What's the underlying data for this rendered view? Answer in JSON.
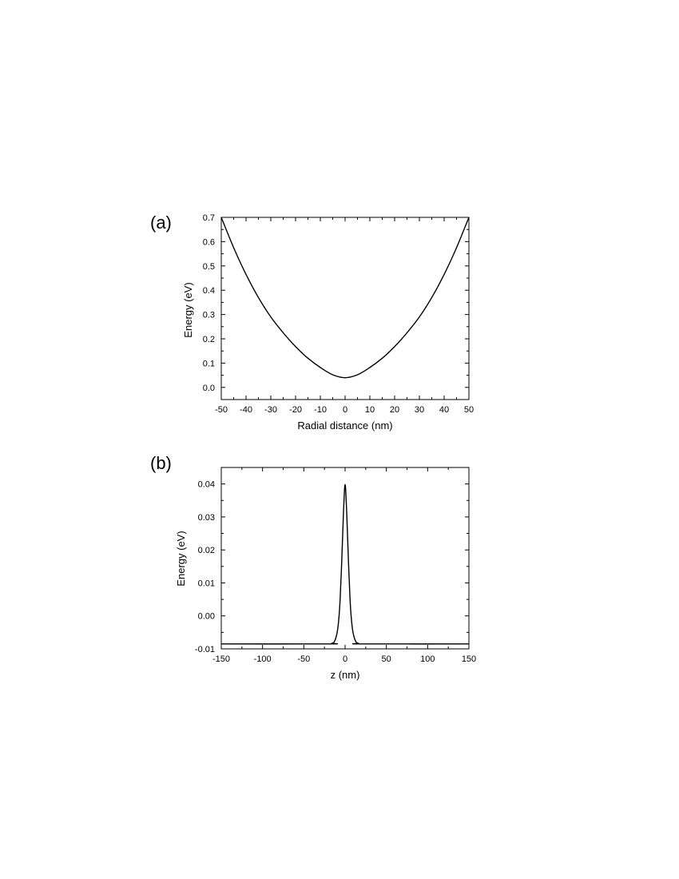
{
  "chart_data": [
    {
      "type": "line",
      "panel_label": "(a)",
      "xlabel": "Radial distance (nm)",
      "ylabel": "Energy (eV)",
      "xlim": [
        -50,
        50
      ],
      "ylim": [
        -0.05,
        0.7
      ],
      "xticks": [
        -50,
        -40,
        -30,
        -20,
        -10,
        0,
        10,
        20,
        30,
        40,
        50
      ],
      "xtick_labels": [
        "-50",
        "-40",
        "-30",
        "-20",
        "-10",
        "0",
        "10",
        "20",
        "30",
        "40",
        "50"
      ],
      "yticks": [
        0.0,
        0.1,
        0.2,
        0.3,
        0.4,
        0.5,
        0.6,
        0.7
      ],
      "ytick_labels": [
        "0.0",
        "0.1",
        "0.2",
        "0.3",
        "0.4",
        "0.5",
        "0.6",
        "0.7"
      ],
      "grid": false,
      "series": [
        {
          "color": "#000000",
          "x": [
            -50,
            -45,
            -40,
            -35,
            -30,
            -25,
            -20,
            -15,
            -10,
            -5,
            0,
            5,
            10,
            15,
            20,
            25,
            30,
            35,
            40,
            45,
            50
          ],
          "y": [
            0.7,
            0.575,
            0.465,
            0.37,
            0.29,
            0.225,
            0.168,
            0.12,
            0.082,
            0.052,
            0.04,
            0.052,
            0.082,
            0.12,
            0.168,
            0.225,
            0.29,
            0.37,
            0.465,
            0.575,
            0.7
          ]
        }
      ]
    },
    {
      "type": "line",
      "panel_label": "(b)",
      "xlabel": "z (nm)",
      "ylabel": "Energy (eV)",
      "xlim": [
        -150,
        150
      ],
      "ylim": [
        -0.01,
        0.045
      ],
      "xticks": [
        -150,
        -100,
        -50,
        0,
        50,
        100,
        150
      ],
      "xtick_labels": [
        "-150",
        "-100",
        "-50",
        "0",
        "50",
        "100",
        "150"
      ],
      "yticks": [
        -0.01,
        0.0,
        0.01,
        0.02,
        0.03,
        0.04
      ],
      "ytick_labels": [
        "-0.01",
        "0.00",
        "0.01",
        "0.02",
        "0.03",
        "0.04"
      ],
      "grid": false,
      "series": [
        {
          "color": "#000000",
          "x": [
            -150,
            -20,
            -16,
            -13,
            -10,
            -8,
            -6,
            -4,
            -2,
            0,
            2,
            4,
            6,
            8,
            10,
            13,
            16,
            20,
            150
          ],
          "y": [
            -0.0085,
            -0.0085,
            -0.0083,
            -0.0078,
            -0.0055,
            -0.002,
            0.005,
            0.017,
            0.031,
            0.0398,
            0.031,
            0.017,
            0.005,
            -0.002,
            -0.0055,
            -0.0078,
            -0.0083,
            -0.0085,
            -0.0085
          ]
        }
      ]
    }
  ]
}
